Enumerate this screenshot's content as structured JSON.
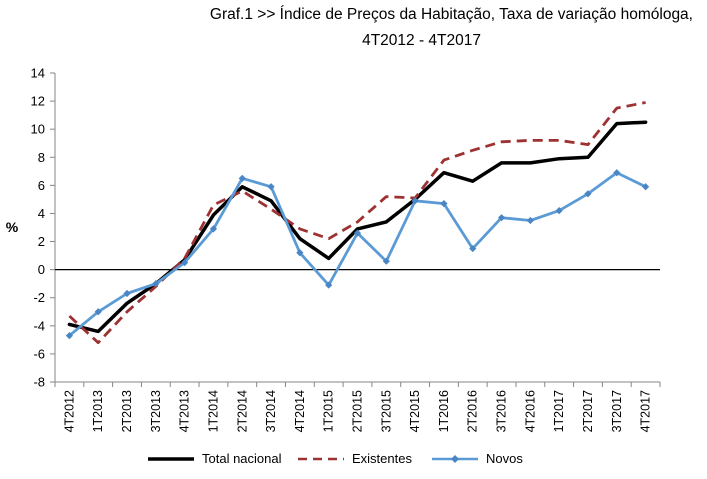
{
  "chart_data": {
    "type": "line",
    "title": "Graf.1  >>  Índice de Preços da Habitação, Taxa de variação homóloga,",
    "subtitle": "4T2012 - 4T2017",
    "xlabel": "",
    "ylabel": "%",
    "ylim": [
      -8,
      14
    ],
    "yticks": [
      -8,
      -6,
      -4,
      -2,
      0,
      2,
      4,
      6,
      8,
      10,
      12,
      14
    ],
    "categories": [
      "4T2012",
      "1T2013",
      "2T2013",
      "3T2013",
      "4T2013",
      "1T2014",
      "2T2014",
      "3T2014",
      "4T2014",
      "1T2015",
      "2T2015",
      "3T2015",
      "4T2015",
      "1T2016",
      "2T2016",
      "3T2016",
      "4T2016",
      "1T2017",
      "2T2017",
      "3T2017",
      "4T2017"
    ],
    "series": [
      {
        "name": "Total nacional",
        "color": "#000000",
        "style": "solid",
        "values": [
          -3.9,
          -4.4,
          -2.4,
          -1.0,
          0.7,
          3.9,
          5.9,
          4.9,
          2.2,
          0.8,
          2.9,
          3.4,
          5.0,
          6.9,
          6.3,
          7.6,
          7.6,
          7.9,
          8.0,
          10.4,
          10.5
        ]
      },
      {
        "name": "Existentes",
        "color": "#9e3232",
        "style": "dashed",
        "values": [
          -3.3,
          -5.2,
          -3.0,
          -1.2,
          0.8,
          4.6,
          5.6,
          4.3,
          2.9,
          2.2,
          3.4,
          5.2,
          5.1,
          7.8,
          8.5,
          9.1,
          9.2,
          9.2,
          8.9,
          11.5,
          11.9
        ]
      },
      {
        "name": "Novos",
        "color": "#5b9bd5",
        "style": "solid-diamond",
        "values": [
          -4.7,
          -3.0,
          -1.7,
          -1.0,
          0.5,
          2.9,
          6.5,
          5.9,
          1.2,
          -1.1,
          2.6,
          0.6,
          4.9,
          4.7,
          1.5,
          3.7,
          3.5,
          4.2,
          5.4,
          6.9,
          5.9
        ]
      }
    ],
    "grid": false,
    "legend_position": "bottom"
  }
}
